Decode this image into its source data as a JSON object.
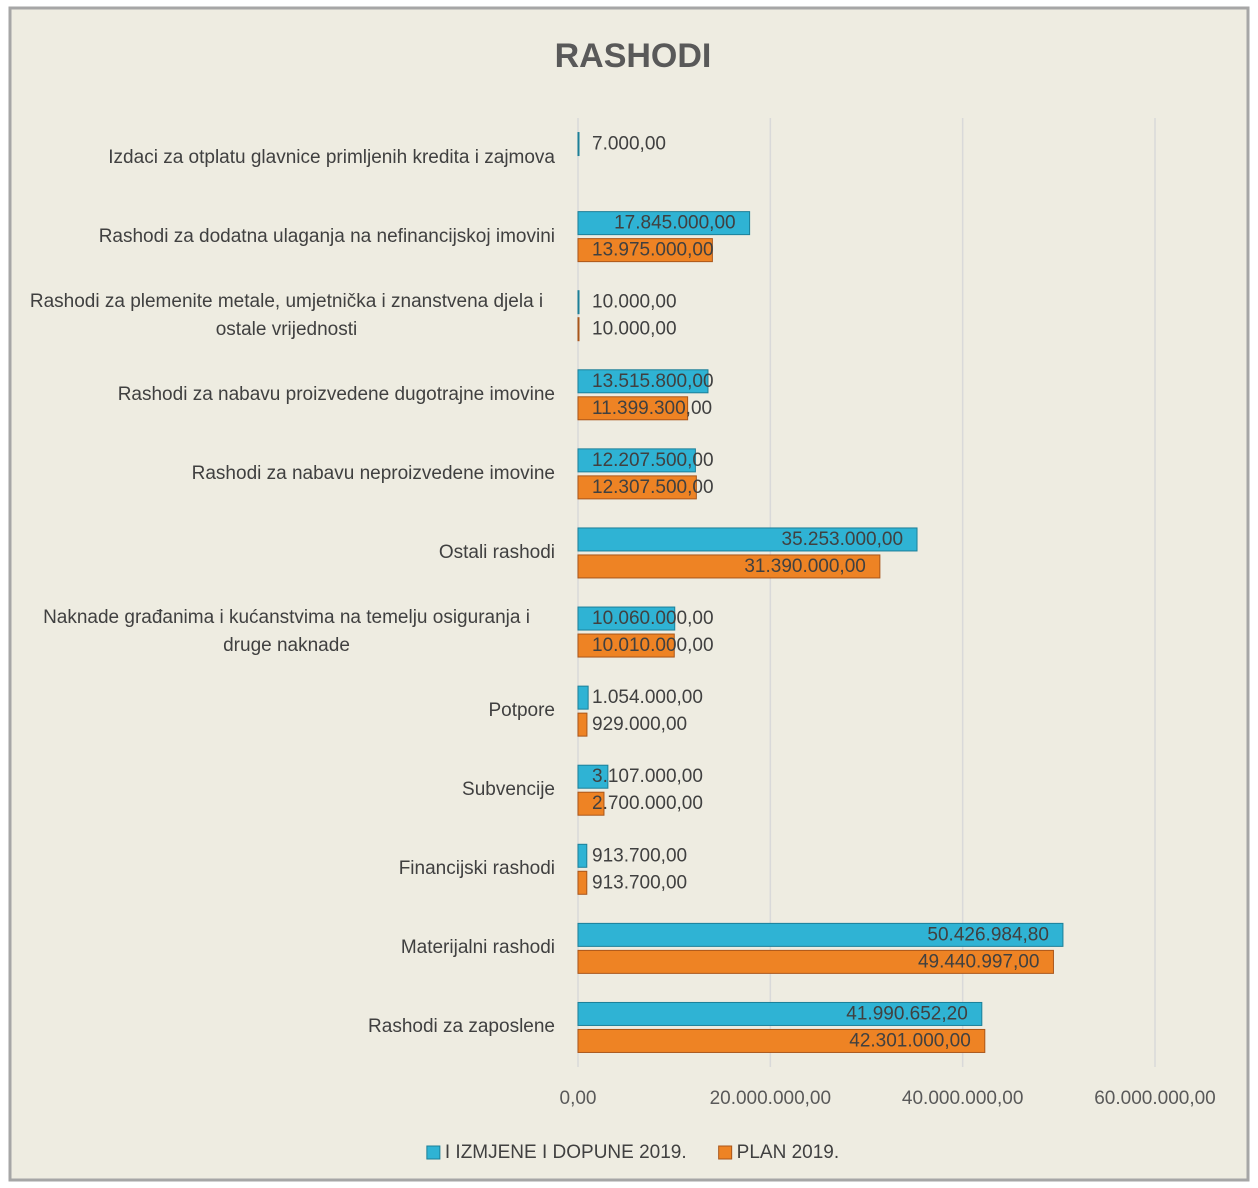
{
  "chart_data": {
    "type": "hbar",
    "title": "RASHODI",
    "categories": [
      "Rashodi za zaposlene",
      "Materijalni rashodi",
      "Financijski rashodi",
      "Subvencije",
      "Potpore",
      "Naknade građanima i kućanstvima na temelju osiguranja i druge naknade",
      "Ostali rashodi",
      "Rashodi za nabavu neproizvedene imovine",
      "Rashodi za nabavu proizvedene dugotrajne imovine",
      "Rashodi za plemenite metale, umjetnička i znanstvena djela i ostale vrijednosti",
      "Rashodi za dodatna ulaganja na nefinancijskoj imovini",
      "Izdaci za otplatu glavnice primljenih kredita i zajmova"
    ],
    "series": [
      {
        "name": "I IZMJENE I DOPUNE 2019.",
        "color": "#2fb3d4",
        "values": [
          41990652.2,
          50426984.8,
          913700,
          3107000,
          1054000,
          10060000,
          35253000,
          12207500,
          13515800,
          10000,
          17845000,
          7000
        ],
        "value_labels": [
          "41.990.652,20",
          "50.426.984,80",
          "913.700,00",
          "3.107.000,00",
          "1.054.000,00",
          "10.060.000,00",
          "35.253.000,00",
          "12.207.500,00",
          "13.515.800,00",
          "10.000,00",
          "17.845.000,00",
          "7.000,00"
        ]
      },
      {
        "name": "PLAN 2019.",
        "color": "#ee8324",
        "values": [
          42301000,
          49440997,
          913700,
          2700000,
          929000,
          10010000,
          31390000,
          12307500,
          11399300,
          10000,
          13975000,
          null
        ],
        "value_labels": [
          "42.301.000,00",
          "49.440.997,00",
          "913.700,00",
          "2.700.000,00",
          "929.000,00",
          "10.010.000,00",
          "31.390.000,00",
          "12.307.500,00",
          "11.399.300,00",
          "10.000,00",
          "13.975.000,00",
          null
        ]
      }
    ],
    "xlim": [
      0,
      60000000
    ],
    "xticks": [
      {
        "value": 0,
        "label": "0,00"
      },
      {
        "value": 20000000,
        "label": "20.000.000,00"
      },
      {
        "value": 40000000,
        "label": "40.000.000,00"
      },
      {
        "value": 60000000,
        "label": "60.000.000,00"
      }
    ],
    "grid": true,
    "legend": "bottom"
  }
}
